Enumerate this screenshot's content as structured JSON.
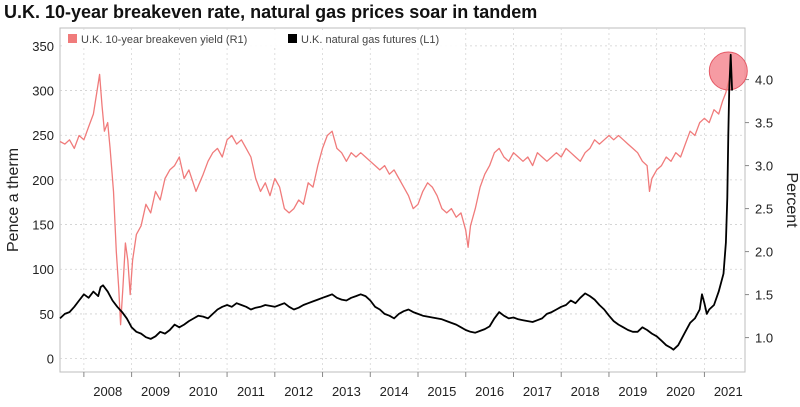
{
  "chart_data": {
    "type": "line",
    "title": "U.K. 10-year breakeven rate, natural gas prices soar in tandem",
    "left_axis": {
      "label": "Pence a therm",
      "ticks": [
        0,
        50,
        100,
        150,
        200,
        250,
        300,
        350
      ],
      "range": [
        -15,
        370
      ]
    },
    "right_axis": {
      "label": "Percent",
      "ticks": [
        "1.0",
        "1.5",
        "2.0",
        "2.5",
        "3.0",
        "3.5",
        "4.0"
      ],
      "range": [
        0.6,
        4.6
      ]
    },
    "x_axis": {
      "ticks": [
        "2008",
        "2009",
        "2010",
        "2011",
        "2012",
        "2013",
        "2014",
        "2015",
        "2016",
        "2017",
        "2018",
        "2019",
        "2020",
        "2021"
      ],
      "range": [
        2007.5,
        2021.85
      ]
    },
    "grid": true,
    "legend_position": "top-left",
    "series": [
      {
        "name": "U.K. 10-year breakeven yield (R1)",
        "axis": "right",
        "color": "#f07b7b",
        "points": [
          [
            2007.5,
            3.28
          ],
          [
            2007.6,
            3.25
          ],
          [
            2007.7,
            3.3
          ],
          [
            2007.8,
            3.2
          ],
          [
            2007.9,
            3.35
          ],
          [
            2008.0,
            3.3
          ],
          [
            2008.1,
            3.45
          ],
          [
            2008.2,
            3.6
          ],
          [
            2008.28,
            3.88
          ],
          [
            2008.33,
            4.06
          ],
          [
            2008.38,
            3.7
          ],
          [
            2008.43,
            3.4
          ],
          [
            2008.5,
            3.5
          ],
          [
            2008.55,
            3.2
          ],
          [
            2008.62,
            2.7
          ],
          [
            2008.68,
            2.0
          ],
          [
            2008.73,
            1.58
          ],
          [
            2008.77,
            1.15
          ],
          [
            2008.82,
            1.6
          ],
          [
            2008.87,
            2.1
          ],
          [
            2008.92,
            1.9
          ],
          [
            2008.97,
            1.5
          ],
          [
            2009.02,
            1.9
          ],
          [
            2009.1,
            2.2
          ],
          [
            2009.2,
            2.3
          ],
          [
            2009.3,
            2.55
          ],
          [
            2009.4,
            2.45
          ],
          [
            2009.5,
            2.7
          ],
          [
            2009.6,
            2.6
          ],
          [
            2009.7,
            2.85
          ],
          [
            2009.8,
            2.95
          ],
          [
            2009.9,
            3.0
          ],
          [
            2010.0,
            3.1
          ],
          [
            2010.1,
            2.85
          ],
          [
            2010.2,
            2.95
          ],
          [
            2010.35,
            2.7
          ],
          [
            2010.5,
            2.9
          ],
          [
            2010.6,
            3.05
          ],
          [
            2010.7,
            3.15
          ],
          [
            2010.8,
            3.2
          ],
          [
            2010.9,
            3.1
          ],
          [
            2011.0,
            3.3
          ],
          [
            2011.1,
            3.35
          ],
          [
            2011.2,
            3.25
          ],
          [
            2011.3,
            3.3
          ],
          [
            2011.4,
            3.2
          ],
          [
            2011.5,
            3.1
          ],
          [
            2011.6,
            2.85
          ],
          [
            2011.7,
            2.7
          ],
          [
            2011.8,
            2.8
          ],
          [
            2011.9,
            2.65
          ],
          [
            2012.0,
            2.85
          ],
          [
            2012.1,
            2.75
          ],
          [
            2012.2,
            2.5
          ],
          [
            2012.3,
            2.45
          ],
          [
            2012.4,
            2.5
          ],
          [
            2012.5,
            2.6
          ],
          [
            2012.6,
            2.55
          ],
          [
            2012.7,
            2.8
          ],
          [
            2012.8,
            2.75
          ],
          [
            2012.9,
            3.0
          ],
          [
            2013.0,
            3.2
          ],
          [
            2013.1,
            3.35
          ],
          [
            2013.2,
            3.4
          ],
          [
            2013.3,
            3.2
          ],
          [
            2013.4,
            3.15
          ],
          [
            2013.5,
            3.05
          ],
          [
            2013.6,
            3.15
          ],
          [
            2013.7,
            3.1
          ],
          [
            2013.8,
            3.15
          ],
          [
            2013.9,
            3.1
          ],
          [
            2014.0,
            3.05
          ],
          [
            2014.1,
            3.0
          ],
          [
            2014.2,
            2.95
          ],
          [
            2014.3,
            3.0
          ],
          [
            2014.4,
            2.9
          ],
          [
            2014.5,
            2.95
          ],
          [
            2014.6,
            2.85
          ],
          [
            2014.7,
            2.75
          ],
          [
            2014.8,
            2.65
          ],
          [
            2014.9,
            2.5
          ],
          [
            2015.0,
            2.55
          ],
          [
            2015.1,
            2.7
          ],
          [
            2015.2,
            2.8
          ],
          [
            2015.3,
            2.75
          ],
          [
            2015.4,
            2.65
          ],
          [
            2015.5,
            2.5
          ],
          [
            2015.6,
            2.45
          ],
          [
            2015.7,
            2.5
          ],
          [
            2015.8,
            2.4
          ],
          [
            2015.9,
            2.45
          ],
          [
            2016.0,
            2.25
          ],
          [
            2016.05,
            2.05
          ],
          [
            2016.1,
            2.3
          ],
          [
            2016.2,
            2.5
          ],
          [
            2016.3,
            2.75
          ],
          [
            2016.4,
            2.9
          ],
          [
            2016.5,
            3.0
          ],
          [
            2016.6,
            3.15
          ],
          [
            2016.7,
            3.2
          ],
          [
            2016.8,
            3.1
          ],
          [
            2016.9,
            3.05
          ],
          [
            2017.0,
            3.15
          ],
          [
            2017.1,
            3.1
          ],
          [
            2017.2,
            3.05
          ],
          [
            2017.3,
            3.1
          ],
          [
            2017.4,
            3.0
          ],
          [
            2017.5,
            3.15
          ],
          [
            2017.6,
            3.1
          ],
          [
            2017.7,
            3.05
          ],
          [
            2017.8,
            3.1
          ],
          [
            2017.9,
            3.15
          ],
          [
            2018.0,
            3.1
          ],
          [
            2018.1,
            3.2
          ],
          [
            2018.2,
            3.15
          ],
          [
            2018.3,
            3.1
          ],
          [
            2018.4,
            3.05
          ],
          [
            2018.5,
            3.15
          ],
          [
            2018.6,
            3.2
          ],
          [
            2018.7,
            3.3
          ],
          [
            2018.8,
            3.25
          ],
          [
            2018.9,
            3.3
          ],
          [
            2019.0,
            3.35
          ],
          [
            2019.1,
            3.3
          ],
          [
            2019.2,
            3.35
          ],
          [
            2019.3,
            3.3
          ],
          [
            2019.4,
            3.25
          ],
          [
            2019.5,
            3.2
          ],
          [
            2019.6,
            3.15
          ],
          [
            2019.7,
            3.05
          ],
          [
            2019.8,
            3.0
          ],
          [
            2019.85,
            2.7
          ],
          [
            2019.9,
            2.85
          ],
          [
            2020.0,
            2.95
          ],
          [
            2020.1,
            3.0
          ],
          [
            2020.2,
            3.1
          ],
          [
            2020.3,
            3.05
          ],
          [
            2020.4,
            3.15
          ],
          [
            2020.5,
            3.1
          ],
          [
            2020.6,
            3.25
          ],
          [
            2020.7,
            3.4
          ],
          [
            2020.8,
            3.35
          ],
          [
            2020.9,
            3.5
          ],
          [
            2021.0,
            3.55
          ],
          [
            2021.1,
            3.5
          ],
          [
            2021.2,
            3.65
          ],
          [
            2021.3,
            3.6
          ],
          [
            2021.38,
            3.75
          ],
          [
            2021.45,
            3.85
          ],
          [
            2021.52,
            4.0
          ],
          [
            2021.55,
            4.08
          ]
        ]
      },
      {
        "name": "U.K. natural gas futures (L1)",
        "axis": "left",
        "color": "#000000",
        "points": [
          [
            2007.5,
            45
          ],
          [
            2007.6,
            50
          ],
          [
            2007.7,
            52
          ],
          [
            2007.8,
            58
          ],
          [
            2007.9,
            65
          ],
          [
            2008.0,
            72
          ],
          [
            2008.1,
            68
          ],
          [
            2008.2,
            75
          ],
          [
            2008.3,
            70
          ],
          [
            2008.35,
            80
          ],
          [
            2008.4,
            82
          ],
          [
            2008.5,
            75
          ],
          [
            2008.6,
            65
          ],
          [
            2008.7,
            58
          ],
          [
            2008.8,
            52
          ],
          [
            2008.9,
            45
          ],
          [
            2009.0,
            35
          ],
          [
            2009.1,
            30
          ],
          [
            2009.2,
            28
          ],
          [
            2009.3,
            24
          ],
          [
            2009.4,
            22
          ],
          [
            2009.5,
            25
          ],
          [
            2009.6,
            30
          ],
          [
            2009.7,
            28
          ],
          [
            2009.8,
            32
          ],
          [
            2009.9,
            38
          ],
          [
            2010.0,
            35
          ],
          [
            2010.1,
            38
          ],
          [
            2010.2,
            42
          ],
          [
            2010.3,
            45
          ],
          [
            2010.4,
            48
          ],
          [
            2010.5,
            47
          ],
          [
            2010.6,
            45
          ],
          [
            2010.7,
            50
          ],
          [
            2010.8,
            55
          ],
          [
            2010.9,
            58
          ],
          [
            2011.0,
            60
          ],
          [
            2011.1,
            58
          ],
          [
            2011.2,
            62
          ],
          [
            2011.3,
            60
          ],
          [
            2011.4,
            58
          ],
          [
            2011.5,
            55
          ],
          [
            2011.6,
            57
          ],
          [
            2011.7,
            58
          ],
          [
            2011.8,
            60
          ],
          [
            2011.9,
            59
          ],
          [
            2012.0,
            58
          ],
          [
            2012.1,
            60
          ],
          [
            2012.2,
            62
          ],
          [
            2012.3,
            58
          ],
          [
            2012.4,
            55
          ],
          [
            2012.5,
            57
          ],
          [
            2012.6,
            60
          ],
          [
            2012.7,
            62
          ],
          [
            2012.8,
            64
          ],
          [
            2012.9,
            66
          ],
          [
            2013.0,
            68
          ],
          [
            2013.1,
            70
          ],
          [
            2013.2,
            72
          ],
          [
            2013.3,
            68
          ],
          [
            2013.4,
            66
          ],
          [
            2013.5,
            65
          ],
          [
            2013.6,
            68
          ],
          [
            2013.7,
            70
          ],
          [
            2013.8,
            72
          ],
          [
            2013.9,
            70
          ],
          [
            2014.0,
            65
          ],
          [
            2014.1,
            58
          ],
          [
            2014.2,
            55
          ],
          [
            2014.3,
            50
          ],
          [
            2014.4,
            48
          ],
          [
            2014.5,
            45
          ],
          [
            2014.6,
            50
          ],
          [
            2014.7,
            53
          ],
          [
            2014.8,
            55
          ],
          [
            2014.9,
            52
          ],
          [
            2015.0,
            50
          ],
          [
            2015.1,
            48
          ],
          [
            2015.2,
            47
          ],
          [
            2015.3,
            46
          ],
          [
            2015.4,
            45
          ],
          [
            2015.5,
            44
          ],
          [
            2015.6,
            42
          ],
          [
            2015.7,
            40
          ],
          [
            2015.8,
            38
          ],
          [
            2015.9,
            35
          ],
          [
            2016.0,
            32
          ],
          [
            2016.1,
            30
          ],
          [
            2016.2,
            29
          ],
          [
            2016.3,
            31
          ],
          [
            2016.4,
            33
          ],
          [
            2016.5,
            36
          ],
          [
            2016.6,
            45
          ],
          [
            2016.7,
            52
          ],
          [
            2016.8,
            48
          ],
          [
            2016.9,
            45
          ],
          [
            2017.0,
            46
          ],
          [
            2017.1,
            44
          ],
          [
            2017.2,
            43
          ],
          [
            2017.3,
            42
          ],
          [
            2017.4,
            41
          ],
          [
            2017.5,
            43
          ],
          [
            2017.6,
            45
          ],
          [
            2017.7,
            50
          ],
          [
            2017.8,
            52
          ],
          [
            2017.9,
            55
          ],
          [
            2018.0,
            58
          ],
          [
            2018.1,
            60
          ],
          [
            2018.2,
            65
          ],
          [
            2018.3,
            62
          ],
          [
            2018.4,
            68
          ],
          [
            2018.5,
            73
          ],
          [
            2018.6,
            70
          ],
          [
            2018.7,
            66
          ],
          [
            2018.8,
            60
          ],
          [
            2018.9,
            55
          ],
          [
            2019.0,
            48
          ],
          [
            2019.1,
            42
          ],
          [
            2019.2,
            38
          ],
          [
            2019.3,
            35
          ],
          [
            2019.4,
            32
          ],
          [
            2019.5,
            30
          ],
          [
            2019.6,
            30
          ],
          [
            2019.7,
            35
          ],
          [
            2019.8,
            32
          ],
          [
            2019.9,
            28
          ],
          [
            2020.0,
            25
          ],
          [
            2020.1,
            20
          ],
          [
            2020.2,
            15
          ],
          [
            2020.3,
            12
          ],
          [
            2020.35,
            10
          ],
          [
            2020.45,
            15
          ],
          [
            2020.5,
            20
          ],
          [
            2020.6,
            30
          ],
          [
            2020.7,
            40
          ],
          [
            2020.8,
            45
          ],
          [
            2020.9,
            55
          ],
          [
            2020.95,
            72
          ],
          [
            2021.0,
            62
          ],
          [
            2021.05,
            50
          ],
          [
            2021.1,
            55
          ],
          [
            2021.2,
            60
          ],
          [
            2021.3,
            75
          ],
          [
            2021.4,
            95
          ],
          [
            2021.45,
            130
          ],
          [
            2021.48,
            180
          ],
          [
            2021.5,
            250
          ],
          [
            2021.52,
            300
          ],
          [
            2021.55,
            340
          ],
          [
            2021.58,
            300
          ]
        ]
      }
    ],
    "annotations": [
      {
        "type": "highlight-circle",
        "x": 2021.5,
        "y_right": 4.1
      }
    ]
  }
}
